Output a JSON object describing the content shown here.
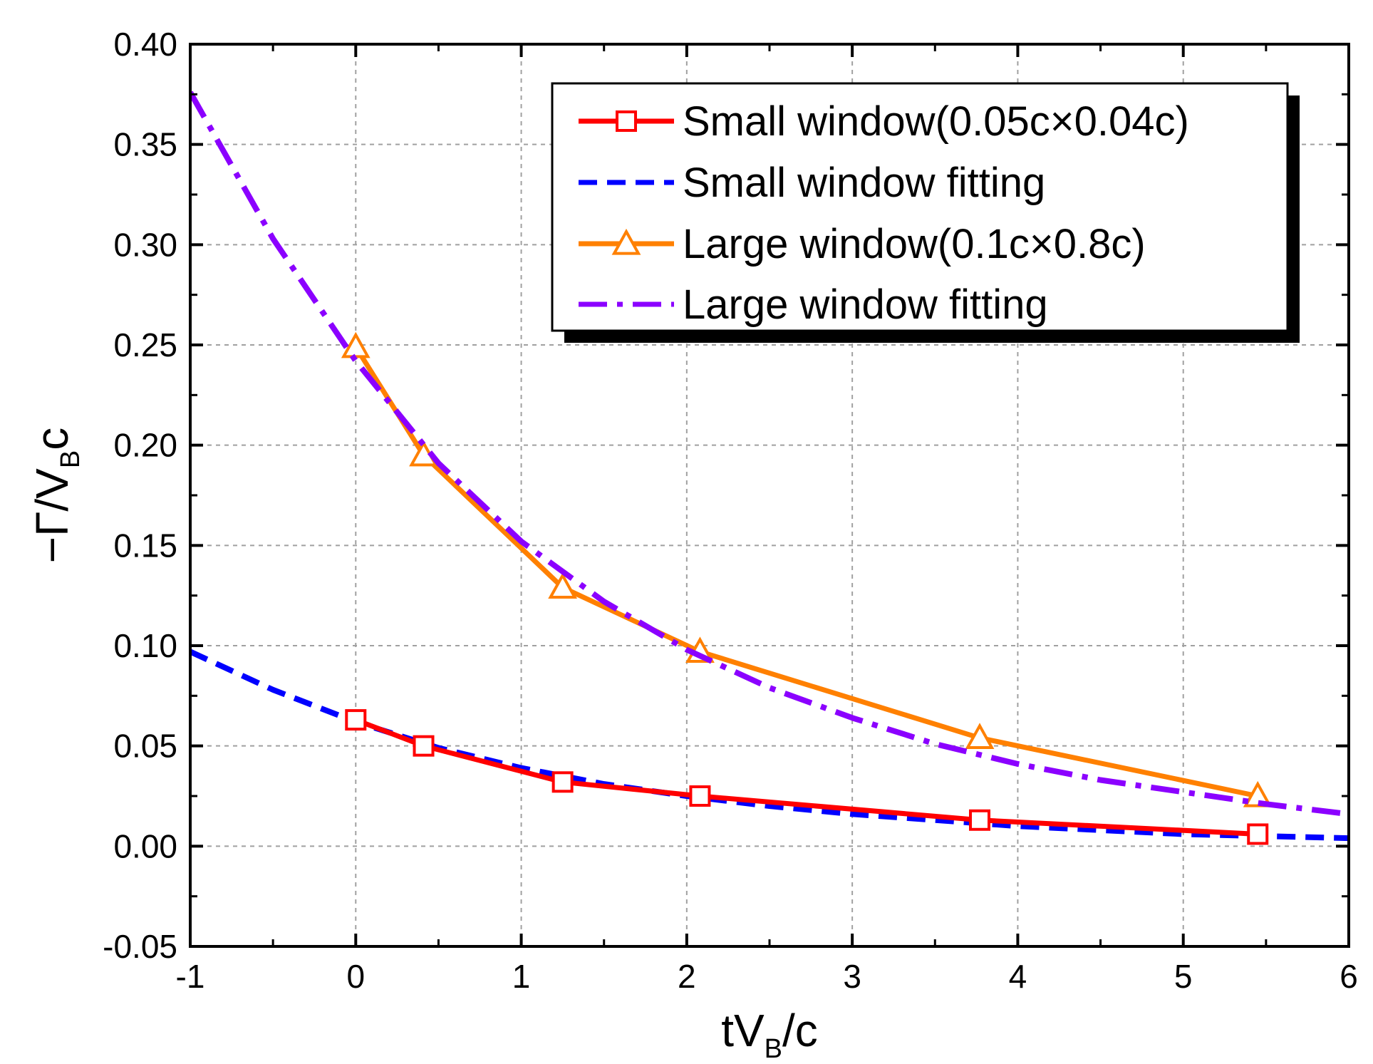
{
  "chart_data": {
    "type": "line",
    "title": "",
    "xlabel": {
      "main": "tV",
      "sub": "B",
      "suffix": "/c"
    },
    "ylabel": {
      "main": "−Γ/V",
      "sub": "B",
      "suffix": "c"
    },
    "xlim": [
      -1,
      6
    ],
    "ylim": [
      -0.05,
      0.4
    ],
    "xticks": [
      -1,
      0,
      1,
      2,
      3,
      4,
      5,
      6
    ],
    "xtick_labels": [
      "-1",
      "0",
      "1",
      "2",
      "3",
      "4",
      "5",
      "6"
    ],
    "yticks": [
      -0.05,
      0.0,
      0.05,
      0.1,
      0.15,
      0.2,
      0.25,
      0.3,
      0.35,
      0.4
    ],
    "ytick_labels": [
      "-0.05",
      "0.00",
      "0.05",
      "0.10",
      "0.15",
      "0.20",
      "0.25",
      "0.30",
      "0.35",
      "0.40"
    ],
    "grid": true,
    "legend_position": "top-right",
    "series": [
      {
        "name": "Small window(0.05c×0.04c)",
        "style": "solid",
        "marker": "square",
        "color": "#ff0000",
        "x": [
          0.0,
          0.41,
          1.25,
          2.08,
          3.77,
          5.45
        ],
        "y": [
          0.063,
          0.05,
          0.032,
          0.025,
          0.013,
          0.006
        ]
      },
      {
        "name": "Small window fitting",
        "style": "dashed",
        "marker": "none",
        "color": "#0000ff",
        "x": [
          -1.0,
          -0.5,
          0.0,
          0.5,
          1.0,
          1.5,
          2.0,
          2.5,
          3.0,
          3.5,
          4.0,
          4.5,
          5.0,
          5.5,
          6.0
        ],
        "y": [
          0.097,
          0.078,
          0.062,
          0.049,
          0.039,
          0.031,
          0.025,
          0.02,
          0.016,
          0.013,
          0.01,
          0.008,
          0.006,
          0.005,
          0.004
        ]
      },
      {
        "name": "Large window(0.1c×0.8c)",
        "style": "solid",
        "marker": "triangle",
        "color": "#ff8000",
        "x": [
          0.0,
          0.41,
          1.25,
          2.08,
          3.77,
          5.45
        ],
        "y": [
          0.249,
          0.195,
          0.129,
          0.097,
          0.054,
          0.025
        ]
      },
      {
        "name": "Large window fitting",
        "style": "dash-dot",
        "marker": "none",
        "color": "#8b00ff",
        "x": [
          -1.0,
          -0.5,
          0.0,
          0.5,
          1.0,
          1.5,
          2.0,
          2.5,
          3.0,
          3.5,
          4.0,
          4.5,
          5.0,
          5.5,
          6.0
        ],
        "y": [
          0.376,
          0.303,
          0.242,
          0.191,
          0.152,
          0.122,
          0.098,
          0.079,
          0.064,
          0.051,
          0.041,
          0.033,
          0.027,
          0.021,
          0.016
        ]
      }
    ]
  }
}
